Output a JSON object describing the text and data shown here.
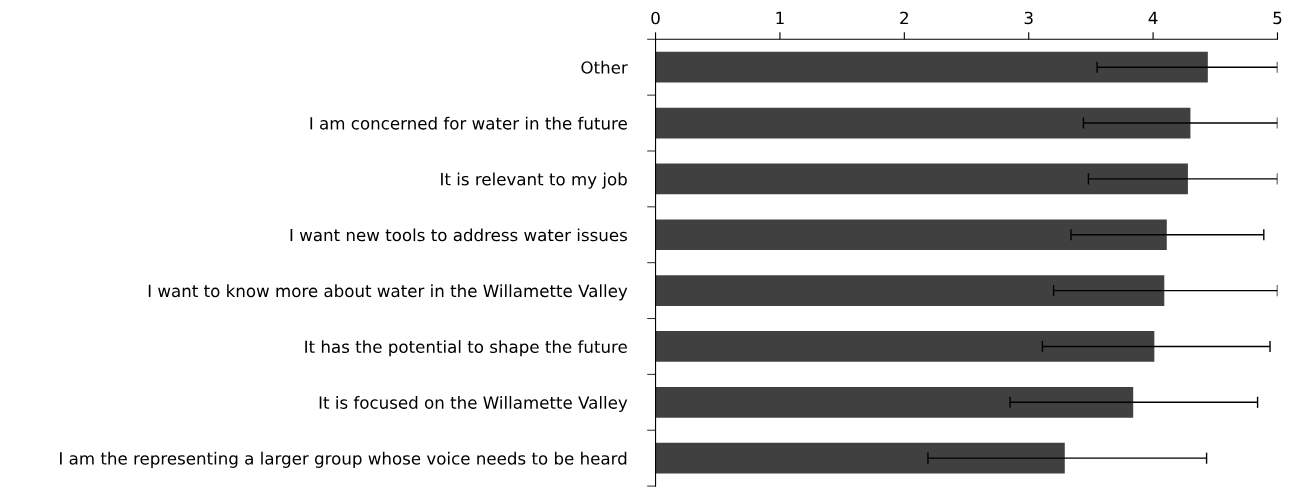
{
  "chart_data": {
    "type": "bar",
    "orientation": "horizontal",
    "categories": [
      "Other",
      "I am concerned for water in the future",
      "It is relevant to my job",
      "I want new tools to address water issues",
      "I want to know more about water in the Willamette Valley",
      "It has the potential to shape the future",
      "It is focused on the Willamette Valley",
      "I am the representing a larger group whose voice needs to be heard"
    ],
    "values": [
      4.44,
      4.3,
      4.28,
      4.11,
      4.09,
      4.01,
      3.84,
      3.29
    ],
    "errors": [
      [
        3.55,
        5
      ],
      [
        3.44,
        5
      ],
      [
        3.48,
        5
      ],
      [
        3.34,
        4.89
      ],
      [
        3.2,
        5
      ],
      [
        3.11,
        4.94
      ],
      [
        2.85,
        4.84
      ],
      [
        2.19,
        4.43
      ]
    ],
    "color": "#404040",
    "xlim": [
      0,
      5
    ],
    "xticks": [
      0,
      1,
      2,
      3,
      4,
      5
    ],
    "grid": false,
    "legend": false
  }
}
